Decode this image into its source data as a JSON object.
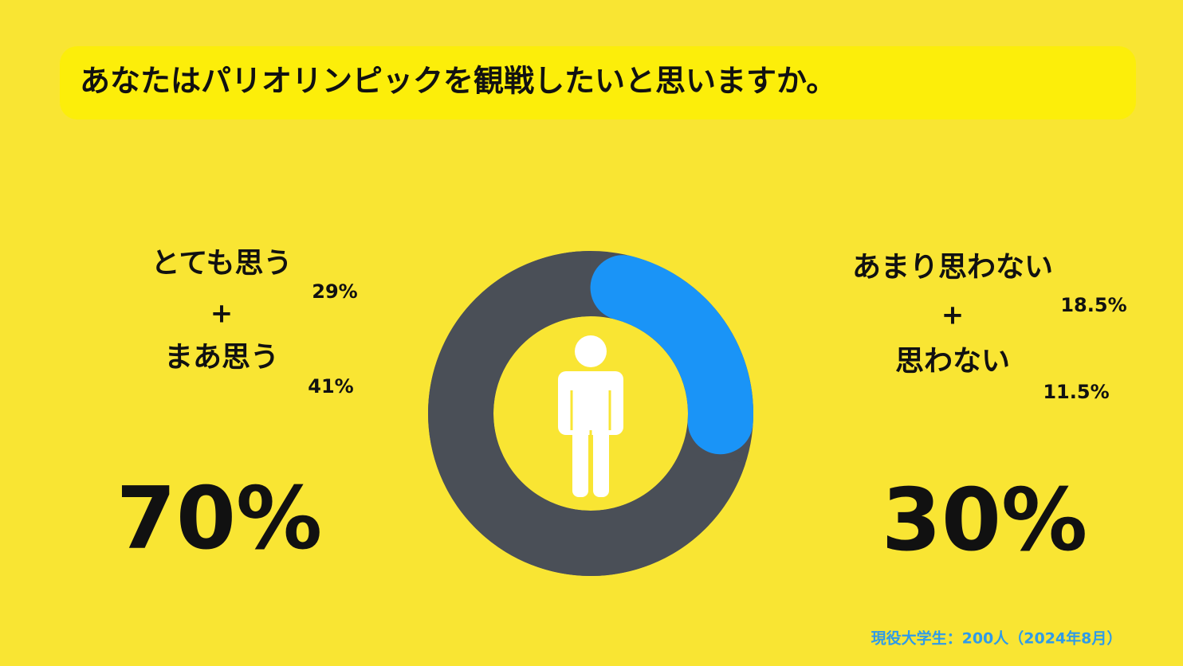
{
  "chart_data": {
    "type": "donut",
    "title": "あなたはパリオリンピックを観戦したいと思いますか。",
    "note": "現役大学生：200人（2024年8月）",
    "values": [
      70,
      30
    ],
    "value_labels": [
      "70%",
      "30%"
    ],
    "colors": [
      "#4a4f57",
      "#1a94f7"
    ],
    "groups": [
      {
        "operator": "+",
        "items": [
          {
            "name": "とても思う",
            "value": 29,
            "label": "29%"
          },
          {
            "name": "まあ思う",
            "value": 41,
            "label": "41%"
          }
        ]
      },
      {
        "operator": "+",
        "items": [
          {
            "name": "あまり思わない",
            "value": 18.5,
            "label": "18.5%"
          },
          {
            "name": "思わない",
            "value": 11.5,
            "label": "11.5%"
          }
        ]
      }
    ]
  }
}
